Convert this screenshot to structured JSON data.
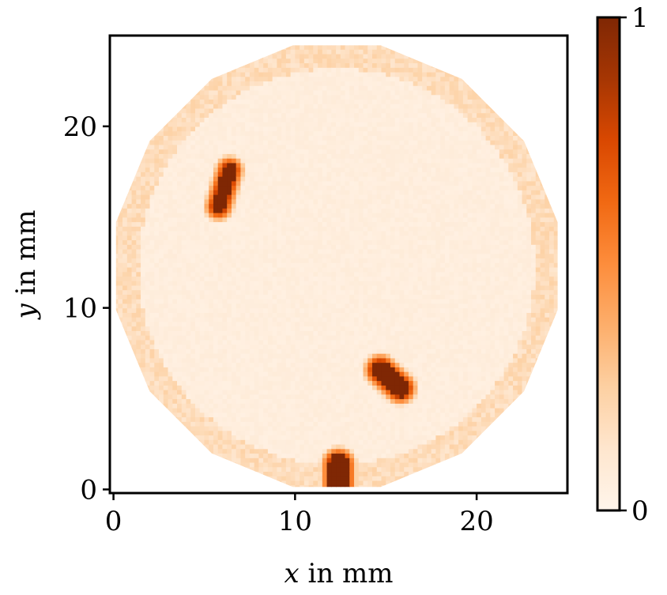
{
  "chart_data": {
    "type": "heatmap",
    "title": "",
    "xlabel": "x in mm",
    "xlabel_parts": {
      "var": "x",
      "rest": " in mm"
    },
    "ylabel": "y in mm",
    "ylabel_parts": {
      "var": "y",
      "rest": " in mm"
    },
    "xlim": [
      -0.2,
      25
    ],
    "ylim": [
      -0.2,
      25
    ],
    "xticks": [
      0,
      10,
      20
    ],
    "xtick_labels": [
      "0",
      "10",
      "20"
    ],
    "yticks": [
      0,
      10,
      20
    ],
    "ytick_labels": [
      "0",
      "10",
      "20"
    ],
    "colorbar": {
      "colormap": "Oranges",
      "vmin": 0,
      "vmax": 1,
      "ticks": [
        0,
        1
      ],
      "tick_labels": [
        "0",
        "1"
      ],
      "colors": [
        "#fff5eb",
        "#fee6ce",
        "#fdd0a2",
        "#fdae6b",
        "#fd8d3c",
        "#f16913",
        "#d94801",
        "#a63603",
        "#7f2704"
      ]
    },
    "grid": false,
    "sample_region": {
      "shape": "octagon-like disc",
      "center": [
        12.3,
        12.3
      ],
      "radius": 12.4,
      "background_value": 0.04,
      "edge_value": 0.12
    },
    "hotspots": [
      {
        "label": "defect upper-left",
        "segment": [
          [
            5.8,
            15.6
          ],
          [
            6.4,
            17.6
          ]
        ],
        "width": 0.75,
        "value": 1.0
      },
      {
        "label": "defect lower-right",
        "segment": [
          [
            14.7,
            6.6
          ],
          [
            15.8,
            5.6
          ]
        ],
        "width": 1.0,
        "value": 1.0
      },
      {
        "label": "defect bottom",
        "segment": [
          [
            12.4,
            0.2
          ],
          [
            12.4,
            1.4
          ]
        ],
        "width": 1.1,
        "value": 1.0
      }
    ]
  }
}
